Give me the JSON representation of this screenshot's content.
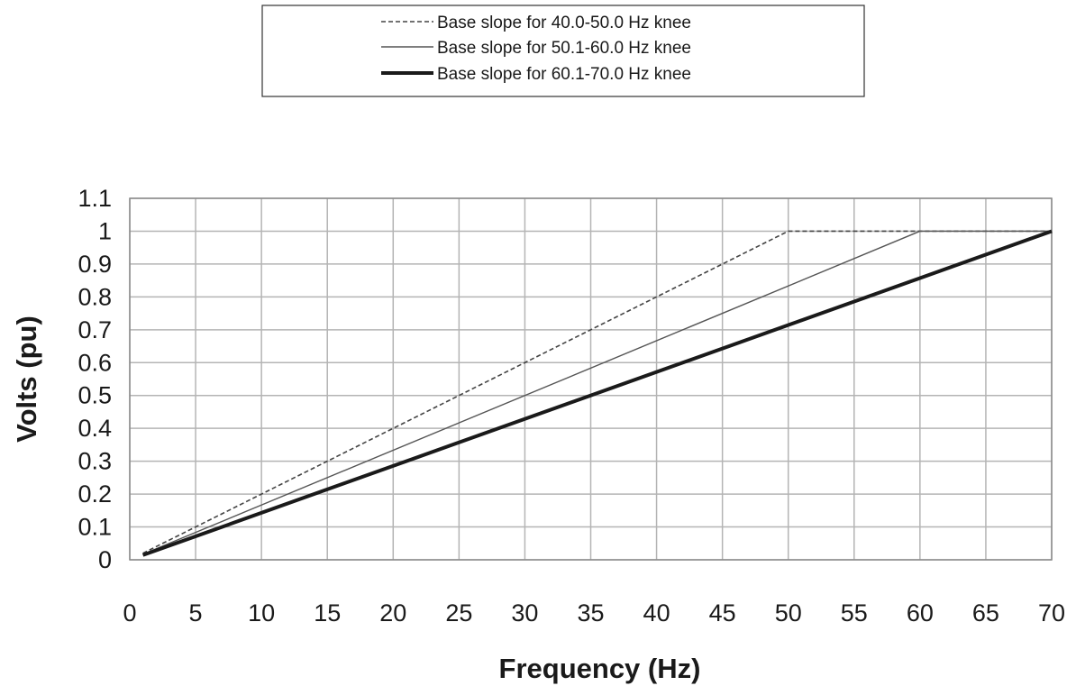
{
  "chart_data": {
    "type": "line",
    "title": "",
    "xlabel": "Frequency (Hz)",
    "ylabel": "Volts (pu)",
    "xlim": [
      0,
      70
    ],
    "ylim": [
      0,
      1.1
    ],
    "x_ticks": [
      "0",
      "5",
      "10",
      "15",
      "20",
      "25",
      "30",
      "35",
      "40",
      "45",
      "50",
      "55",
      "60",
      "65",
      "70"
    ],
    "y_ticks": [
      "0",
      "0.1",
      "0.2",
      "0.3",
      "0.4",
      "0.5",
      "0.6",
      "0.7",
      "0.8",
      "0.9",
      "1",
      "1.1"
    ],
    "grid": true,
    "legend_position": "top-center",
    "series": [
      {
        "name": "Base slope for 40.0-50.0 Hz knee",
        "style": "dashed",
        "color": "#444444",
        "x": [
          1,
          50,
          70
        ],
        "y": [
          0.02,
          1.0,
          1.0
        ]
      },
      {
        "name": "Base slope for 50.1-60.0 Hz knee",
        "style": "thin",
        "color": "#555555",
        "x": [
          1,
          60,
          70
        ],
        "y": [
          0.0167,
          1.0,
          1.0
        ]
      },
      {
        "name": "Base slope for 60.1-70.0 Hz knee",
        "style": "thick",
        "color": "#1a1a1a",
        "x": [
          1,
          70
        ],
        "y": [
          0.0143,
          1.0
        ]
      }
    ]
  }
}
